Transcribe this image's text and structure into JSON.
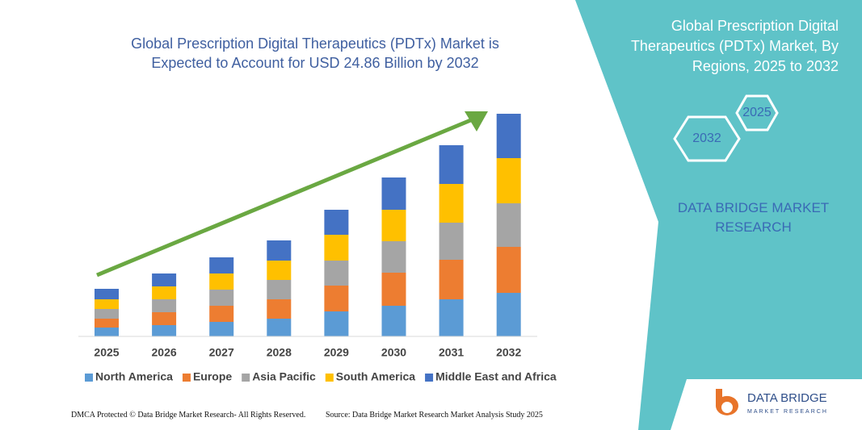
{
  "chart_data": {
    "type": "stacked-bar",
    "title": "Global Prescription Digital Therapeutics (PDTx) Market is Expected to Account for USD 24.86 Billion by 2032",
    "categories": [
      "2025",
      "2026",
      "2027",
      "2028",
      "2029",
      "2030",
      "2031",
      "2032"
    ],
    "series": [
      {
        "name": "North America",
        "color": "#5b9bd5",
        "values": [
          11,
          14,
          18,
          22,
          31,
          38,
          46,
          54
        ]
      },
      {
        "name": "Europe",
        "color": "#ed7d31",
        "values": [
          11,
          16,
          20,
          24,
          32,
          41,
          49,
          57
        ]
      },
      {
        "name": "Asia Pacific",
        "color": "#a5a5a5",
        "values": [
          12,
          16,
          20,
          24,
          31,
          39,
          46,
          54
        ]
      },
      {
        "name": "South America",
        "color": "#ffc000",
        "values": [
          12,
          16,
          20,
          24,
          32,
          39,
          48,
          56
        ]
      },
      {
        "name": "Middle East and Africa",
        "color": "#4472c4",
        "values": [
          13,
          16,
          20,
          25,
          31,
          40,
          48,
          55
        ]
      }
    ]
  },
  "panel": {
    "title": "Global Prescription Digital Therapeutics (PDTx) Market, By Regions, 2025 to 2032",
    "hex_top": "2025",
    "hex_bottom": "2032",
    "brand": "DATA BRIDGE MARKET RESEARCH"
  },
  "logo": {
    "name": "DATA BRIDGE",
    "tagline": "MARKET RESEARCH"
  },
  "footer": {
    "left": "DMCA Protected © Data Bridge Market Research- All Rights Reserved.",
    "right": "Source: Data Bridge Market Research Market Analysis Study 2025"
  }
}
